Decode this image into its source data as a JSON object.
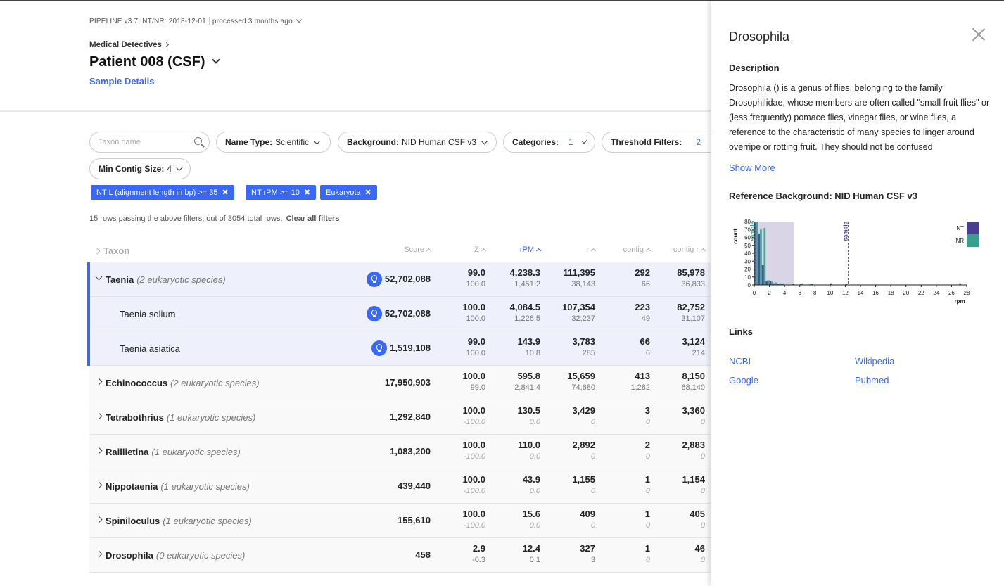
{
  "header": {
    "pipeline": "PIPELINE v3.7, NT/NR: 2018-12-01",
    "processed": "processed 3 months ago",
    "breadcrumb": "Medical Detectives",
    "title": "Patient 008 (CSF)",
    "sample_details": "Sample Details"
  },
  "filters": {
    "search_placeholder": "Taxon name",
    "name_type": {
      "label": "Name Type:",
      "value": "Scientific"
    },
    "background": {
      "label": "Background:",
      "value": "NID Human CSF v3"
    },
    "categories": {
      "label": "Categories:",
      "count": "1"
    },
    "threshold": {
      "label": "Threshold Filters:",
      "count": "2"
    },
    "min_contig": {
      "label": "Min Contig Size:",
      "value": "4"
    },
    "tags": [
      "NT L (alignment length in bp) >= 35",
      "NT rPM >= 10",
      "Eukaryota"
    ],
    "tag_remove": "✖",
    "row_count": "15 rows passing the above filters, out of 3054 total rows.",
    "clear_all": "Clear all filters"
  },
  "table": {
    "headers": {
      "taxon": "Taxon",
      "score": "Score",
      "z": "Z",
      "rpm": "rPM",
      "r": "r",
      "contig": "contig",
      "contig_r": "contig r"
    },
    "rows": [
      {
        "name": "Taenia",
        "sub": "(2 eukaryotic species)",
        "score": "52,702,088",
        "z": "99.0",
        "z2": "100.0",
        "rpm": "4,238.3",
        "rpm2": "1,451.2",
        "r": "111,395",
        "r2": "38,143",
        "contig": "292",
        "contig2": "66",
        "contigr": "85,978",
        "contigr2": "36,833"
      },
      {
        "name": "Taenia solium",
        "score": "52,702,088",
        "z": "100.0",
        "z2": "100.0",
        "rpm": "4,084.5",
        "rpm2": "1,226.5",
        "r": "107,354",
        "r2": "32,237",
        "contig": "223",
        "contig2": "49",
        "contigr": "82,752",
        "contigr2": "31,107"
      },
      {
        "name": "Taenia asiatica",
        "score": "1,519,108",
        "z": "99.0",
        "z2": "100.0",
        "rpm": "143.9",
        "rpm2": "10.8",
        "r": "3,783",
        "r2": "285",
        "contig": "66",
        "contig2": "6",
        "contigr": "3,124",
        "contigr2": "214"
      },
      {
        "name": "Echinococcus",
        "sub": "(2 eukaryotic species)",
        "score": "17,950,903",
        "z": "100.0",
        "z2": "99.0",
        "rpm": "595.8",
        "rpm2": "2,841.4",
        "r": "15,659",
        "r2": "74,680",
        "contig": "413",
        "contig2": "1,282",
        "contigr": "8,150",
        "contigr2": "68,140"
      },
      {
        "name": "Tetrabothrius",
        "sub": "(1 eukaryotic species)",
        "score": "1,292,840",
        "z": "100.0",
        "z2": "-100.0",
        "rpm": "130.5",
        "rpm2": "0.0",
        "r": "3,429",
        "r2": "0",
        "contig": "3",
        "contig2": "0",
        "contigr": "3,360",
        "contigr2": "0"
      },
      {
        "name": "Raillietina",
        "sub": "(1 eukaryotic species)",
        "score": "1,083,200",
        "z": "100.0",
        "z2": "-100.0",
        "rpm": "110.0",
        "rpm2": "0.0",
        "r": "2,892",
        "r2": "0",
        "contig": "2",
        "contig2": "0",
        "contigr": "2,883",
        "contigr2": "0"
      },
      {
        "name": "Nippotaenia",
        "sub": "(1 eukaryotic species)",
        "score": "439,440",
        "z": "100.0",
        "z2": "-100.0",
        "rpm": "43.9",
        "rpm2": "0.0",
        "r": "1,155",
        "r2": "0",
        "contig": "1",
        "contig2": "0",
        "contigr": "1,154",
        "contigr2": "0"
      },
      {
        "name": "Spiniloculus",
        "sub": "(1 eukaryotic species)",
        "score": "155,610",
        "z": "100.0",
        "z2": "-100.0",
        "rpm": "15.6",
        "rpm2": "0.0",
        "r": "409",
        "r2": "0",
        "contig": "1",
        "contig2": "0",
        "contigr": "405",
        "contigr2": "0"
      },
      {
        "name": "Drosophila",
        "sub": "(0 eukaryotic species)",
        "score": "458",
        "z": "2.9",
        "z2": "-0.3",
        "rpm": "12.4",
        "rpm2": "0.1",
        "r": "327",
        "r2": "3",
        "contig": "1",
        "contig2": "0",
        "contigr": "46",
        "contigr2": "0"
      }
    ]
  },
  "panel": {
    "title": "Drosophila",
    "description_heading": "Description",
    "description": "Drosophila () is a genus of flies, belonging to the family Drosophilidae, whose members are often called \"small fruit flies\" or (less frequently) pomace flies, vinegar flies, or wine flies, a reference to the characteristic of many species to linger around overripe or rotting fruit. They should not be confused",
    "show_more": "Show More",
    "reference_heading": "Reference Background: NID Human CSF v3",
    "links_heading": "Links",
    "links": [
      "NCBI",
      "Wikipedia",
      "Google",
      "Pubmed"
    ]
  },
  "colors": {
    "accent": "#3867fa",
    "nt": "#4b3d8f",
    "nr": "#3a9e8f",
    "range": "#d9d4e6"
  },
  "chart_data": {
    "type": "bar",
    "ylabel": "count",
    "xlabel": "rpm",
    "ylim": [
      0,
      80
    ],
    "yticks": [
      0,
      10,
      20,
      30,
      40,
      50,
      60,
      70,
      80
    ],
    "xlim": [
      0,
      28
    ],
    "xticks": [
      0,
      2,
      4,
      6,
      8,
      10,
      12,
      14,
      16,
      18,
      20,
      22,
      24,
      26,
      28
    ],
    "bin_width": 0.5,
    "legend": [
      "NT",
      "NR"
    ],
    "series": [
      {
        "name": "NT",
        "x": [
          0,
          0.5,
          1,
          1.5,
          2,
          2.5,
          3,
          3.5,
          5,
          6,
          7.5,
          10,
          12,
          27
        ],
        "values": [
          80,
          65,
          25,
          5,
          5,
          2,
          1,
          1,
          1,
          1,
          1,
          2,
          1,
          2
        ]
      },
      {
        "name": "NR",
        "x": [
          0,
          0.5,
          1,
          1.5,
          2,
          2.5,
          3,
          3.5,
          6,
          7
        ],
        "values": [
          80,
          70,
          72,
          6,
          4,
          3,
          2,
          2,
          2,
          1
        ]
      }
    ],
    "reference_range": [
      0,
      5.2
    ],
    "markers": [
      {
        "label": "sample",
        "x": 0.1,
        "series": "NR"
      },
      {
        "label": "sample",
        "x": 12.4,
        "series": "NT"
      }
    ]
  }
}
